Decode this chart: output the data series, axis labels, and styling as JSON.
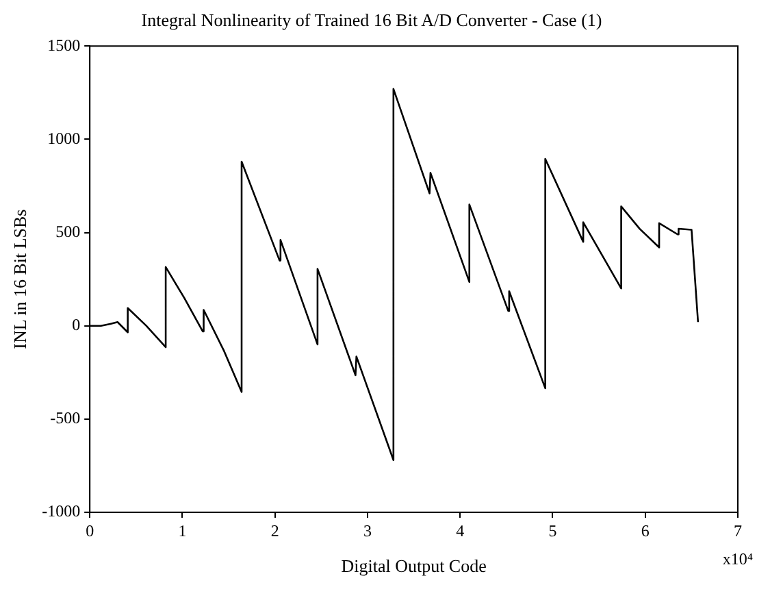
{
  "chart_data": {
    "type": "line",
    "title": "Integral Nonlinearity of Trained 16 Bit A/D Converter - Case (1)",
    "xlabel": "Digital Output Code",
    "ylabel": "INL in 16 Bit LSBs",
    "annotations": [
      "x10⁴"
    ],
    "x": [
      0,
      0.12,
      0.22,
      0.3,
      0.41,
      0.41,
      0.61,
      0.82,
      0.82,
      1.02,
      1.22,
      1.23,
      1.45,
      1.64,
      1.64,
      2.05,
      2.06,
      2.46,
      2.46,
      2.87,
      2.88,
      3.28,
      3.28,
      3.67,
      3.68,
      4.1,
      4.1,
      4.52,
      4.53,
      4.92,
      4.92,
      5.33,
      5.33,
      5.74,
      5.74,
      5.94,
      6.15,
      6.15,
      6.35,
      6.36,
      6.5,
      6.57
    ],
    "series": [
      {
        "color": "#000000",
        "values": [
          0,
          0,
          10,
          20,
          -35,
          95,
          0,
          -115,
          315,
          150,
          -30,
          85,
          -135,
          -355,
          880,
          350,
          460,
          -100,
          305,
          -265,
          -165,
          -720,
          1270,
          710,
          820,
          235,
          650,
          80,
          185,
          -335,
          895,
          450,
          555,
          200,
          640,
          520,
          420,
          550,
          490,
          520,
          515,
          20
        ]
      }
    ],
    "xlim": [
      0,
      7
    ],
    "xticks": [
      0,
      1,
      2,
      3,
      4,
      5,
      6,
      7
    ],
    "ylim": [
      -1000,
      1500
    ],
    "yticks": [
      -1000,
      -500,
      0,
      500,
      1000,
      1500
    ],
    "grid": false,
    "legend": false,
    "marker": "none",
    "line_style": "solid"
  }
}
